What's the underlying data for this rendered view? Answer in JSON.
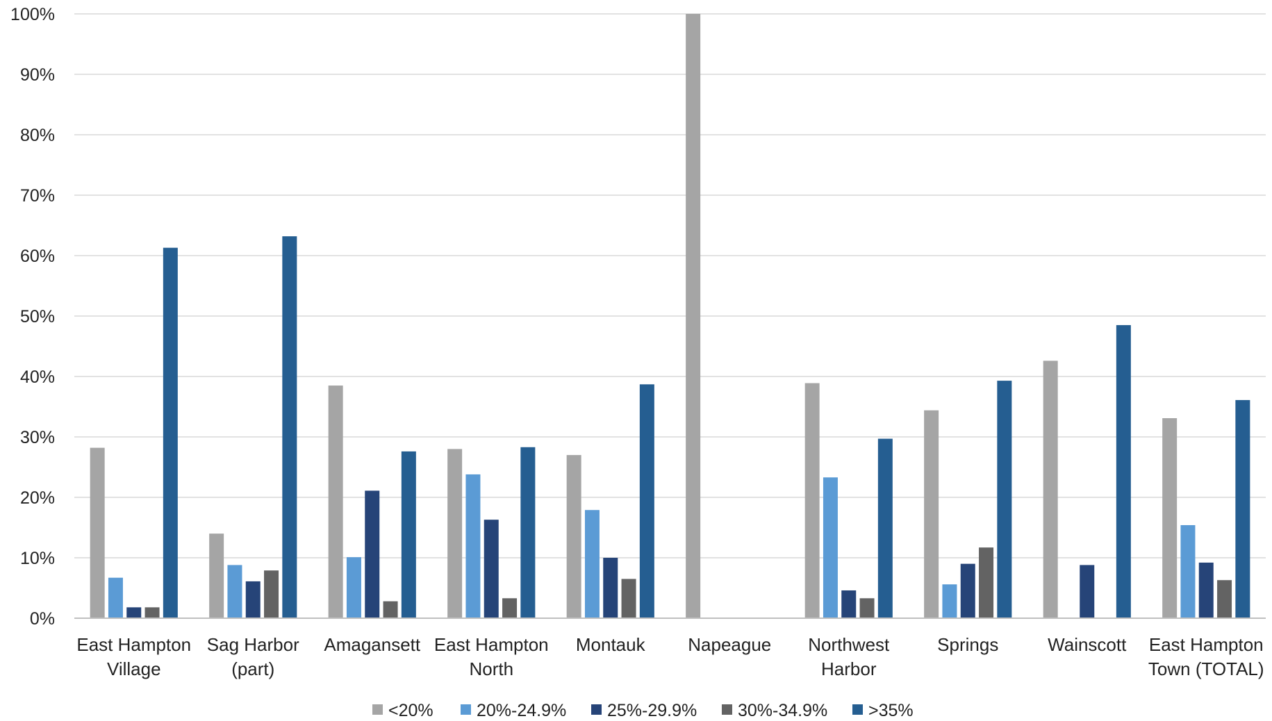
{
  "chart_data": {
    "type": "bar",
    "title": "",
    "xlabel": "",
    "ylabel": "",
    "ylim": [
      0,
      100
    ],
    "y_tick_values": [
      0,
      10,
      20,
      30,
      40,
      50,
      60,
      70,
      80,
      90,
      100
    ],
    "y_tick_labels": [
      "0%",
      "10%",
      "20%",
      "30%",
      "40%",
      "50%",
      "60%",
      "70%",
      "80%",
      "90%",
      "100%"
    ],
    "grid": true,
    "legend_position": "bottom",
    "categories": [
      [
        "East Hampton",
        "Village"
      ],
      [
        "Sag Harbor",
        "(part)"
      ],
      [
        "Amagansett"
      ],
      [
        "East Hampton",
        "North"
      ],
      [
        "Montauk"
      ],
      [
        "Napeague"
      ],
      [
        "Northwest",
        "Harbor"
      ],
      [
        "Springs"
      ],
      [
        "Wainscott"
      ],
      [
        "East Hampton",
        "Town (TOTAL)"
      ]
    ],
    "series": [
      {
        "name": "<20%",
        "color": "#a5a5a5",
        "values": [
          28.2,
          14.0,
          38.5,
          28.0,
          27.0,
          100.0,
          38.9,
          34.4,
          42.6,
          33.1
        ]
      },
      {
        "name": "20%-24.9%",
        "color": "#5b9bd5",
        "values": [
          6.7,
          8.8,
          10.1,
          23.8,
          17.9,
          0,
          23.3,
          5.6,
          0,
          15.4
        ]
      },
      {
        "name": "25%-29.9%",
        "color": "#264478",
        "values": [
          1.8,
          6.1,
          21.1,
          16.3,
          10.0,
          0,
          4.6,
          9.0,
          8.8,
          9.2
        ]
      },
      {
        "name": "30%-34.9%",
        "color": "#636363",
        "values": [
          1.8,
          7.9,
          2.8,
          3.3,
          6.5,
          0,
          3.3,
          11.7,
          0,
          6.3
        ]
      },
      {
        "name": ">35%",
        "color": "#255e91",
        "values": [
          61.3,
          63.2,
          27.6,
          28.3,
          38.7,
          0,
          29.7,
          39.3,
          48.5,
          36.1
        ]
      }
    ]
  }
}
